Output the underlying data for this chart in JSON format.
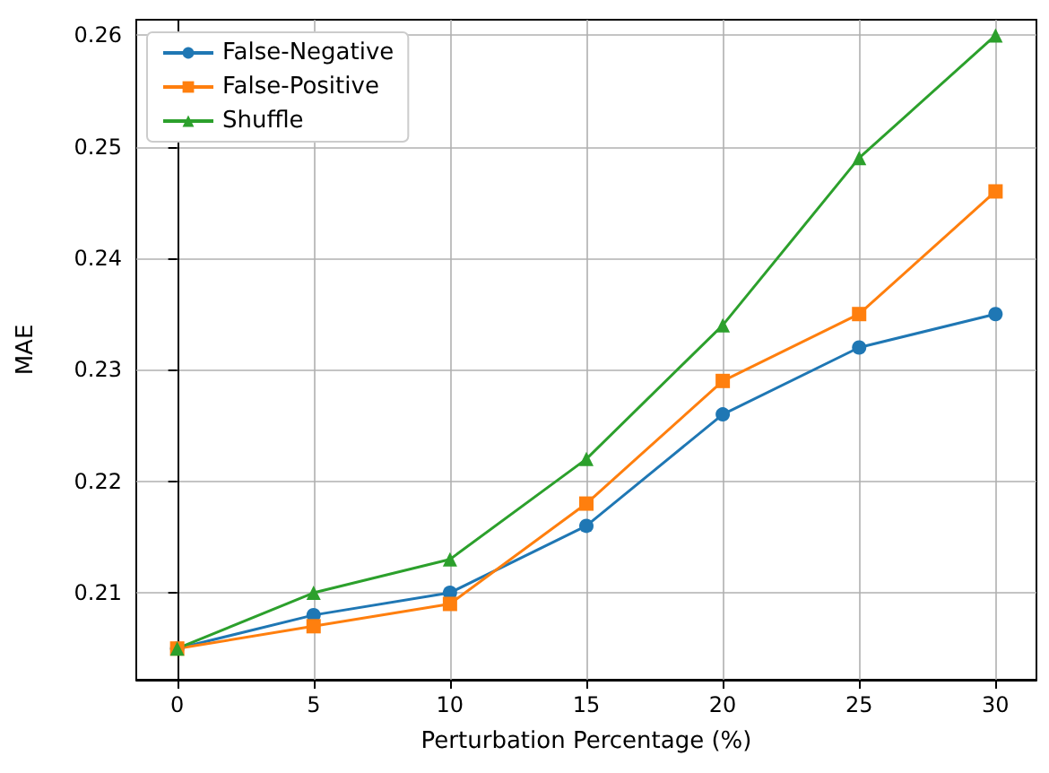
{
  "chart_data": {
    "type": "line",
    "xlabel": "Perturbation Percentage (%)",
    "ylabel": "MAE",
    "x": [
      0,
      5,
      10,
      15,
      20,
      25,
      30
    ],
    "series": [
      {
        "name": "False-Negative",
        "color": "#1f77b4",
        "marker": "circle",
        "values": [
          0.205,
          0.208,
          0.21,
          0.216,
          0.226,
          0.232,
          0.235
        ]
      },
      {
        "name": "False-Positive",
        "color": "#ff7f0e",
        "marker": "square",
        "values": [
          0.205,
          0.207,
          0.209,
          0.218,
          0.229,
          0.235,
          0.246
        ]
      },
      {
        "name": "Shuffle",
        "color": "#2ca02c",
        "marker": "triangle",
        "values": [
          0.205,
          0.21,
          0.213,
          0.222,
          0.234,
          0.249,
          0.26
        ]
      }
    ],
    "xlim": [
      -1.5,
      31.5
    ],
    "xticks": [
      0,
      5,
      10,
      15,
      20,
      25,
      30
    ],
    "ylim": [
      0.2022,
      0.2614
    ],
    "yticks": [
      0.21,
      0.22,
      0.23,
      0.24,
      0.25,
      0.26
    ],
    "grid": true,
    "legend": "top left",
    "line_style": "solid"
  }
}
